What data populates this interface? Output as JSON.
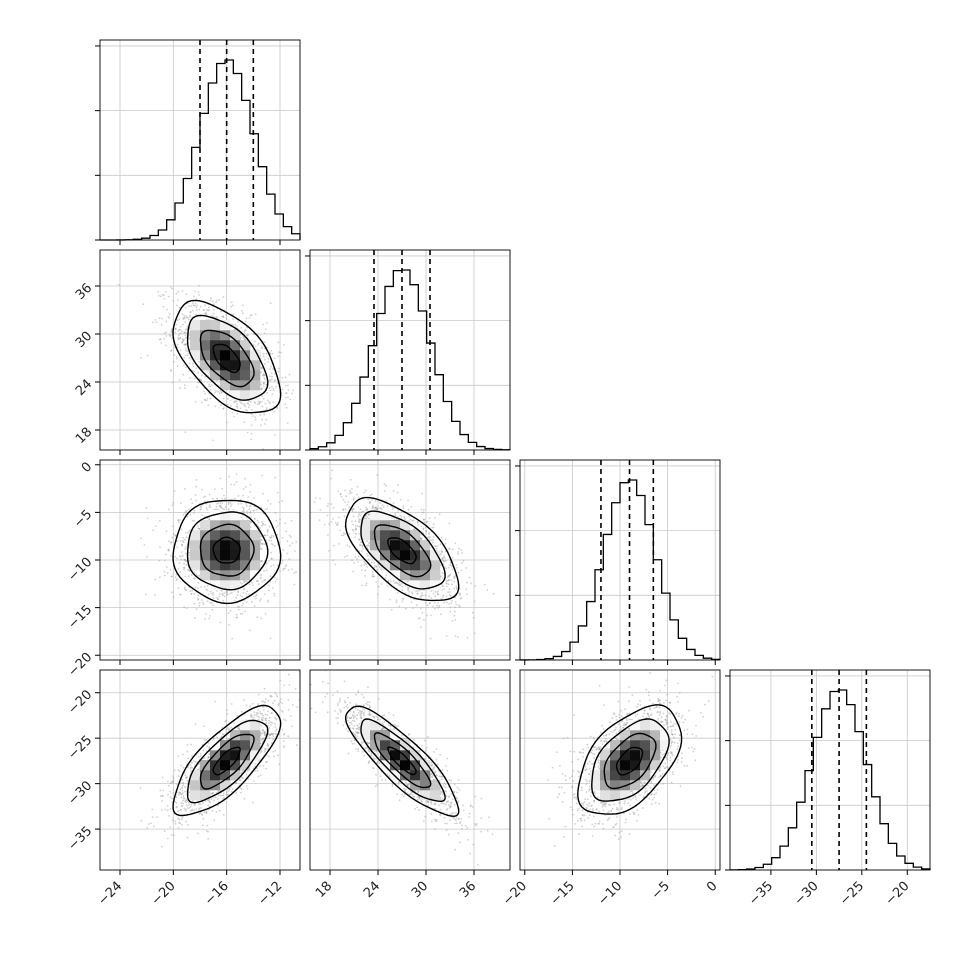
{
  "chart_data": {
    "type": "corner",
    "variables": [
      {
        "median": -16.0,
        "quantiles": [
          -18.0,
          -16.0,
          -14.0
        ],
        "sd": 2.0,
        "range": [
          -25.5,
          -10.5
        ],
        "ticks": [
          -24,
          -20,
          -16,
          -12
        ],
        "tick_labels": [
          "−24",
          "−20",
          "−16",
          "−12"
        ]
      },
      {
        "median": 27.0,
        "quantiles": [
          23.5,
          27.0,
          30.5
        ],
        "sd": 3.5,
        "range": [
          15.5,
          40.5
        ],
        "ticks": [
          18,
          24,
          30,
          36
        ],
        "tick_labels": [
          "18",
          "24",
          "30",
          "36"
        ]
      },
      {
        "median": -9.0,
        "quantiles": [
          -12.0,
          -9.0,
          -6.5
        ],
        "sd": 2.7,
        "range": [
          -20.5,
          0.5
        ],
        "ticks": [
          -20,
          -15,
          -10,
          -5,
          0
        ],
        "tick_labels": [
          "−20",
          "−15",
          "−10",
          "−5",
          "0"
        ]
      },
      {
        "median": -27.5,
        "quantiles": [
          -30.5,
          -27.5,
          -24.5
        ],
        "sd": 3.0,
        "range": [
          -39.5,
          -17.5
        ],
        "ticks": [
          -35,
          -30,
          -25,
          -20
        ],
        "tick_labels": [
          "−35",
          "−30",
          "−25",
          "−20"
        ]
      }
    ],
    "correlations": [
      {
        "i": 1,
        "j": 0,
        "rho": -0.55
      },
      {
        "i": 2,
        "j": 0,
        "rho": 0.0
      },
      {
        "i": 2,
        "j": 1,
        "rho": -0.6
      },
      {
        "i": 3,
        "j": 0,
        "rho": 0.75
      },
      {
        "i": 3,
        "j": 1,
        "rho": -0.85
      },
      {
        "i": 3,
        "j": 2,
        "rho": 0.5
      }
    ],
    "grid": true
  }
}
